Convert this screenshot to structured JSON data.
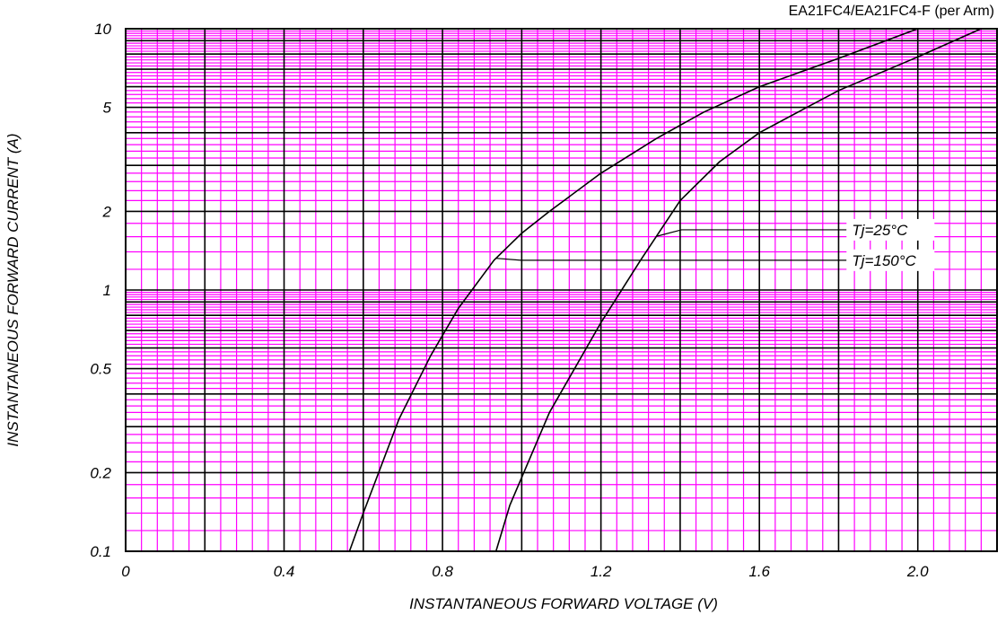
{
  "chart_data": {
    "type": "line",
    "title": "EA21FC4/EA21FC4-F (per Arm)",
    "xlabel": "INSTANTANEOUS FORWARD VOLTAGE (V)",
    "ylabel": "INSTANTANEOUS FORWARD CURRENT (A)",
    "xlim": [
      0,
      2.2
    ],
    "ylim": [
      0.1,
      10
    ],
    "yscale": "log",
    "grid": true,
    "colors": {
      "minor_grid": "#ff00ff",
      "major_grid": "#000000",
      "curve": "#000000"
    },
    "x_ticks": [
      {
        "value": 0,
        "label": "0"
      },
      {
        "value": 0.4,
        "label": "0.4"
      },
      {
        "value": 0.8,
        "label": "0.8"
      },
      {
        "value": 1.2,
        "label": "1.2"
      },
      {
        "value": 1.6,
        "label": "1.6"
      },
      {
        "value": 2.0,
        "label": "2.0"
      }
    ],
    "y_ticks": [
      {
        "value": 0.1,
        "label": "0.1"
      },
      {
        "value": 0.2,
        "label": "0.2"
      },
      {
        "value": 0.5,
        "label": "0.5"
      },
      {
        "value": 1,
        "label": "1"
      },
      {
        "value": 2,
        "label": "2"
      },
      {
        "value": 5,
        "label": "5"
      },
      {
        "value": 10,
        "label": "10"
      }
    ],
    "series": [
      {
        "name": "Tj=150°C",
        "x": [
          0.565,
          0.6,
          0.69,
          0.77,
          0.84,
          0.93,
          1.0,
          1.07,
          1.2,
          1.34,
          1.46,
          1.6,
          1.8,
          2.0
        ],
        "y": [
          0.1,
          0.14,
          0.32,
          0.56,
          0.85,
          1.3,
          1.65,
          2.0,
          2.8,
          3.8,
          4.8,
          6.0,
          7.7,
          10.0
        ]
      },
      {
        "name": "Tj=25°C",
        "x": [
          0.935,
          0.97,
          1.07,
          1.2,
          1.3,
          1.4,
          1.5,
          1.6,
          1.72,
          1.8,
          2.0,
          2.16
        ],
        "y": [
          0.1,
          0.15,
          0.34,
          0.75,
          1.3,
          2.2,
          3.1,
          4.0,
          5.0,
          5.8,
          7.8,
          10.0
        ]
      }
    ],
    "annotations": [
      {
        "text": "Tj=25°C",
        "series": "Tj=25°C",
        "at_x": 1.34,
        "label_x": 1.82,
        "label_y": 1.7
      },
      {
        "text": "Tj=150°C",
        "series": "Tj=150°C",
        "at_x": 0.935,
        "label_x": 1.82,
        "label_y": 1.3
      }
    ]
  }
}
